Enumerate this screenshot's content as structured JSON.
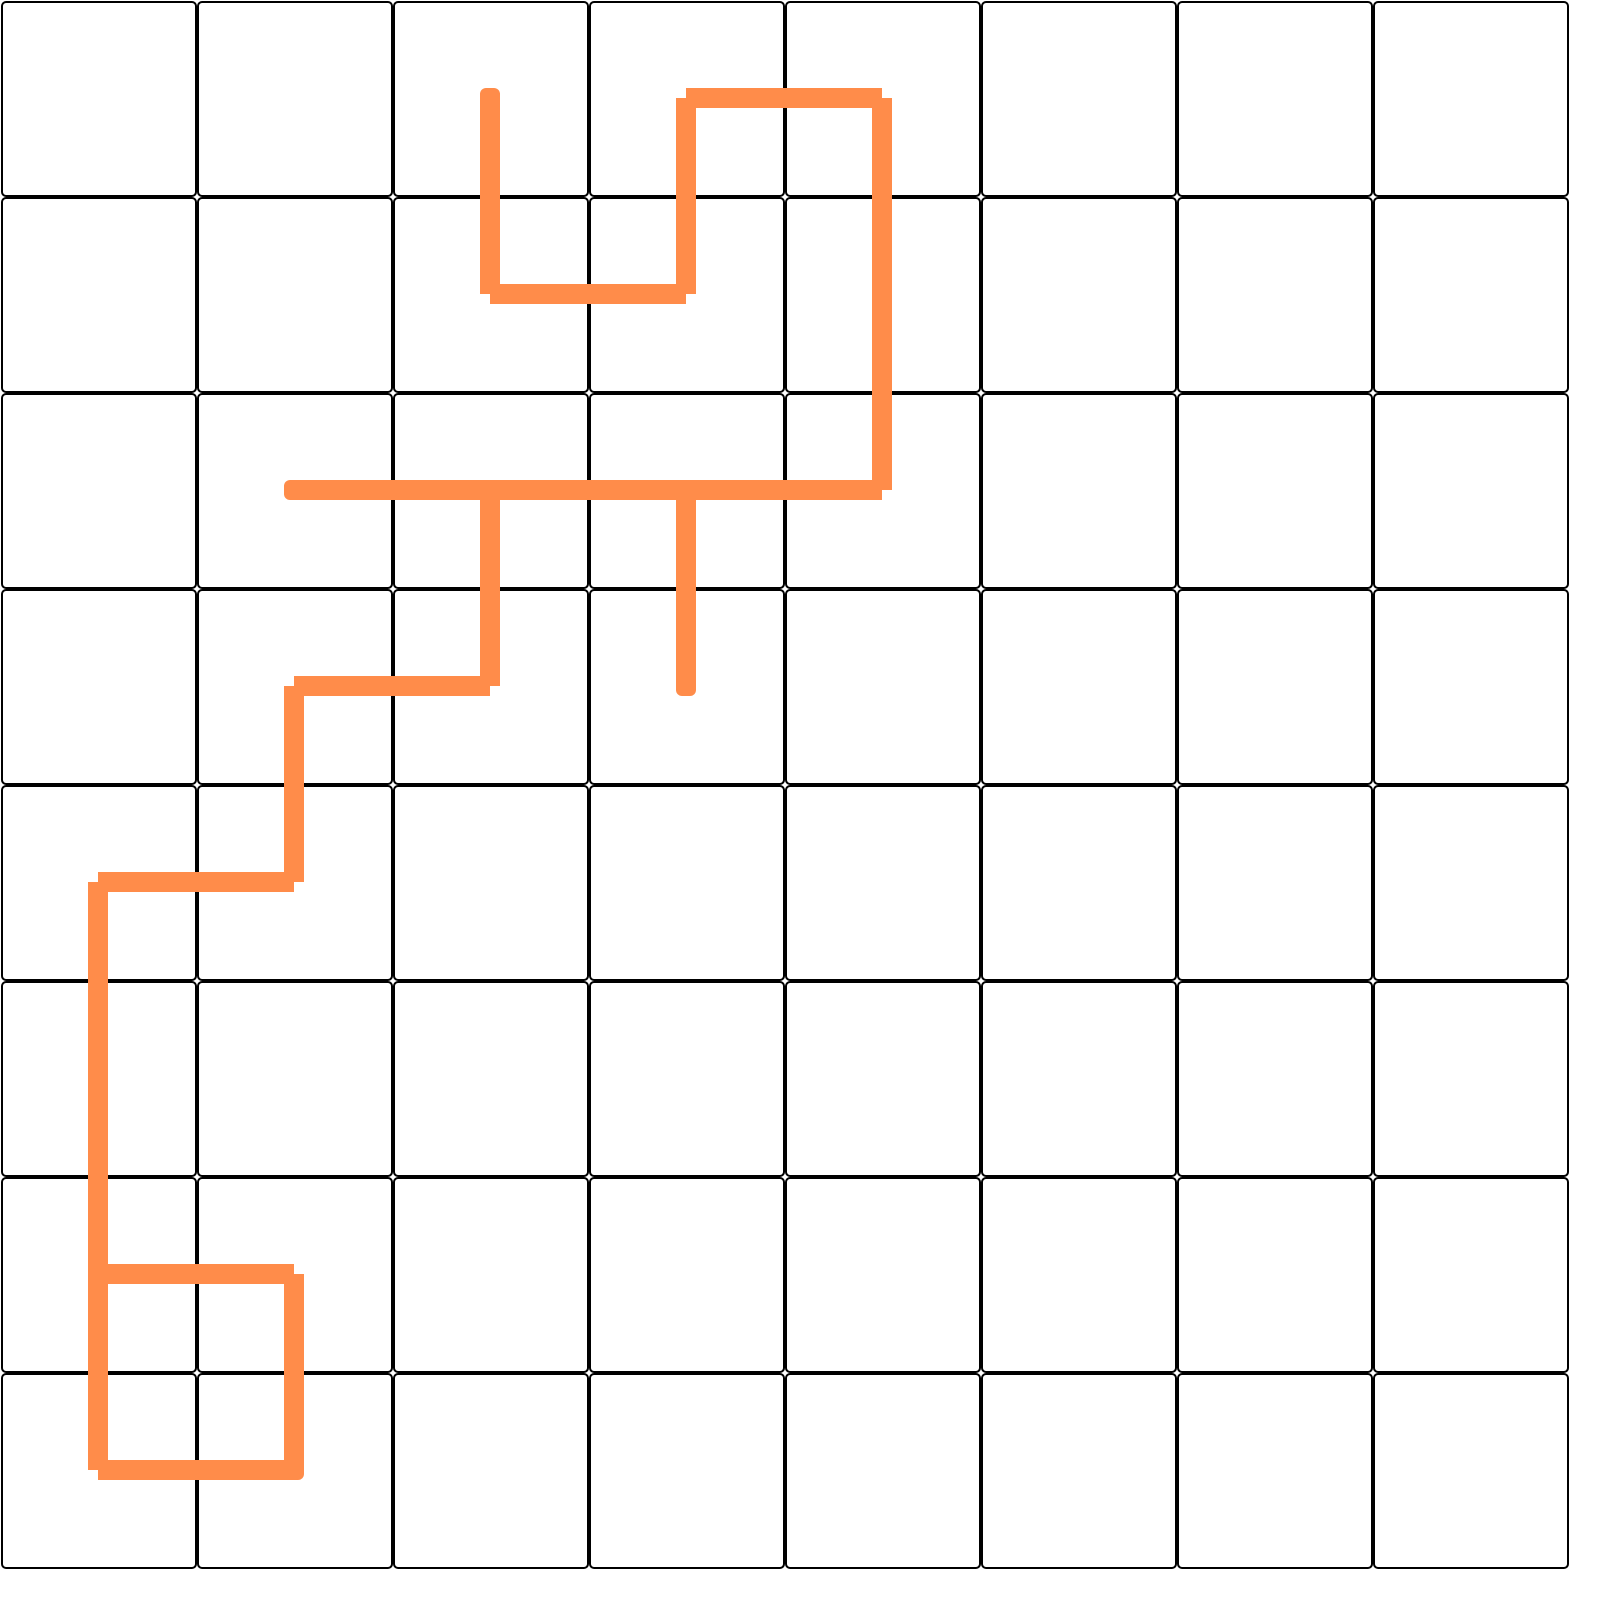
{
  "board": {
    "rows": 8,
    "cols": 8,
    "pipe_color": "#ff8c4a",
    "tile_fill": "#ffffff",
    "tile_border_color": "#000000",
    "nodes": [
      [
        2,
        0
      ],
      [
        3,
        0
      ],
      [
        4,
        0
      ],
      [
        2,
        1
      ],
      [
        3,
        1
      ],
      [
        4,
        1
      ],
      [
        1,
        2
      ],
      [
        2,
        2
      ],
      [
        3,
        2
      ],
      [
        4,
        2
      ],
      [
        1,
        3
      ],
      [
        2,
        3
      ],
      [
        3,
        3
      ],
      [
        0,
        4
      ],
      [
        1,
        4
      ],
      [
        0,
        5
      ],
      [
        0,
        6
      ],
      [
        1,
        6
      ],
      [
        0,
        7
      ],
      [
        1,
        7
      ]
    ],
    "connections": [
      [
        [
          2,
          0
        ],
        [
          2,
          1
        ]
      ],
      [
        [
          2,
          1
        ],
        [
          3,
          1
        ]
      ],
      [
        [
          3,
          1
        ],
        [
          3,
          0
        ]
      ],
      [
        [
          3,
          0
        ],
        [
          4,
          0
        ]
      ],
      [
        [
          4,
          0
        ],
        [
          4,
          1
        ]
      ],
      [
        [
          4,
          1
        ],
        [
          4,
          2
        ]
      ],
      [
        [
          4,
          2
        ],
        [
          3,
          2
        ]
      ],
      [
        [
          3,
          2
        ],
        [
          2,
          2
        ]
      ],
      [
        [
          2,
          2
        ],
        [
          1,
          2
        ]
      ],
      [
        [
          3,
          2
        ],
        [
          3,
          3
        ]
      ],
      [
        [
          2,
          2
        ],
        [
          2,
          3
        ]
      ],
      [
        [
          2,
          3
        ],
        [
          1,
          3
        ]
      ],
      [
        [
          1,
          3
        ],
        [
          1,
          4
        ]
      ],
      [
        [
          1,
          4
        ],
        [
          0,
          4
        ]
      ],
      [
        [
          0,
          4
        ],
        [
          0,
          5
        ]
      ],
      [
        [
          0,
          5
        ],
        [
          0,
          6
        ]
      ],
      [
        [
          0,
          6
        ],
        [
          0,
          7
        ]
      ],
      [
        [
          0,
          7
        ],
        [
          1,
          7
        ]
      ],
      [
        [
          0,
          6
        ],
        [
          1,
          6
        ]
      ],
      [
        [
          1,
          6
        ],
        [
          1,
          7
        ]
      ]
    ],
    "endpoints": [
      [
        2,
        0
      ],
      [
        1,
        2
      ],
      [
        3,
        3
      ],
      [
        1,
        7
      ]
    ]
  }
}
